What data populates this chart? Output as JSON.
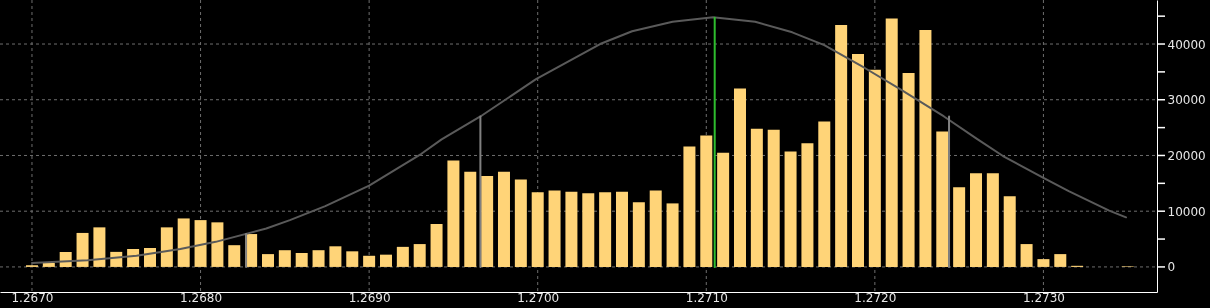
{
  "chart_data": {
    "type": "bar",
    "x": [
      1.267,
      1.2671,
      1.2672,
      1.2673,
      1.2674,
      1.2675,
      1.2676,
      1.2677,
      1.2678,
      1.2679,
      1.268,
      1.2681,
      1.2682,
      1.2683,
      1.2684,
      1.2685,
      1.2686,
      1.2687,
      1.2688,
      1.2689,
      1.269,
      1.2691,
      1.2692,
      1.2693,
      1.2694,
      1.2695,
      1.2696,
      1.2697,
      1.2698,
      1.2699,
      1.27,
      1.2701,
      1.2702,
      1.2703,
      1.2704,
      1.2705,
      1.2706,
      1.2707,
      1.2708,
      1.2709,
      1.271,
      1.2711,
      1.2712,
      1.2713,
      1.2714,
      1.2715,
      1.2716,
      1.2717,
      1.2718,
      1.2719,
      1.272,
      1.2721,
      1.2722,
      1.2723,
      1.2724,
      1.2725,
      1.2726,
      1.2727,
      1.2728,
      1.2729,
      1.273,
      1.2731,
      1.2732,
      1.2733,
      1.2734,
      1.2735
    ],
    "series": [
      {
        "color": "#ffd478",
        "values": [
          300,
          700,
          2700,
          6100,
          7100,
          2700,
          3200,
          3400,
          7100,
          8700,
          8400,
          8000,
          3900,
          5900,
          2300,
          3000,
          2500,
          3000,
          3700,
          2800,
          2000,
          2200,
          3600,
          4100,
          7700,
          19100,
          17100,
          16300,
          17100,
          15700,
          13400,
          13700,
          13500,
          13200,
          13400,
          13500,
          11600,
          13700,
          11400,
          21600,
          23600,
          20500,
          32000,
          24800,
          24600,
          20700,
          22200,
          26100,
          43400,
          38200,
          35400,
          44600,
          34800,
          42500,
          24300,
          14300,
          16800,
          16800,
          12700,
          4100,
          1400,
          2300,
          200,
          null,
          null,
          100
        ]
      },
      {
        "type": "line",
        "color": "#5a5a5a",
        "x": [
          1.267,
          1.26733,
          1.26762,
          1.26788,
          1.26809,
          1.26839,
          1.26853,
          1.26874,
          1.269,
          1.26919,
          1.26931,
          1.26943,
          1.26966,
          1.26999,
          1.27037,
          1.27056,
          1.2708,
          1.27104,
          1.27129,
          1.27151,
          1.2717,
          1.27194,
          1.27214,
          1.27241,
          1.27261,
          1.27276,
          1.273,
          1.27315,
          1.27339,
          1.27349
        ],
        "values": [
          700,
          1200,
          2000,
          3200,
          4500,
          6900,
          8400,
          10900,
          14600,
          18100,
          20300,
          22900,
          27000,
          33700,
          40000,
          42300,
          44000,
          44800,
          44000,
          42100,
          39800,
          35700,
          32100,
          27000,
          22900,
          19900,
          16000,
          13600,
          10100,
          8900
        ]
      },
      {
        "type": "line",
        "color": "#808080",
        "x": [
          1.26827,
          1.26827
        ],
        "values": [
          0,
          5900
        ]
      },
      {
        "type": "line",
        "color": "#808080",
        "x": [
          1.26966,
          1.26966
        ],
        "values": [
          0,
          27000
        ]
      },
      {
        "type": "line",
        "color": "#808080",
        "x": [
          1.27244,
          1.27244
        ],
        "values": [
          0,
          27000
        ]
      },
      {
        "type": "line",
        "color": "#2ebd2e",
        "x": [
          1.27105,
          1.27105
        ],
        "values": [
          0,
          44700
        ]
      }
    ],
    "xlim": [
      1.26684,
      1.273644
    ],
    "ylim": [
      -4500,
      47900
    ],
    "xticks": [
      {
        "value": 1.267,
        "label": "1.2670"
      },
      {
        "value": 1.268,
        "label": "1.2680"
      },
      {
        "value": 1.269,
        "label": "1.2690"
      },
      {
        "value": 1.27,
        "label": "1.2700"
      },
      {
        "value": 1.271,
        "label": "1.2710"
      },
      {
        "value": 1.272,
        "label": "1.2720"
      },
      {
        "value": 1.273,
        "label": "1.2730"
      }
    ],
    "yticks": [
      0,
      {
        "value": 5000,
        "label": null
      },
      10000,
      {
        "value": 15000,
        "label": null
      },
      20000,
      {
        "value": 25000,
        "label": null
      },
      30000,
      {
        "value": 35000,
        "label": null
      },
      40000,
      {
        "value": 45000,
        "label": null
      }
    ],
    "grid": true,
    "marker": "none",
    "line_style": "solid"
  }
}
